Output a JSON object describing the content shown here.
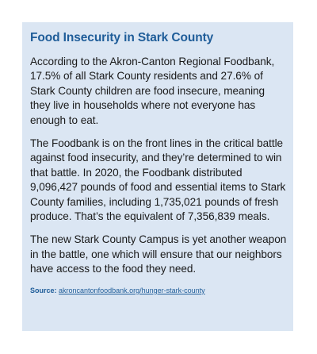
{
  "sidebar": {
    "title": "Food Insecurity in Stark County",
    "paragraphs": [
      "According to the Akron-Canton Regional Foodbank, 17.5% of all Stark County residents and 27.6% of Stark County children are food insecure, meaning they live in households where not everyone has enough to eat.",
      "The Foodbank is on the front lines in the critical battle against food insecurity, and they’re determined to win that battle. In 2020, the Foodbank distributed 9,096,427 pounds of food and essential items to Stark County families, including 1,735,021 pounds of fresh produce. That’s the equivalent of 7,356,839 meals.",
      "The new Stark County Campus is yet another weapon in the battle, one which will ensure that our neighbors have access to the food they need."
    ],
    "source_label": "Source:",
    "source_link": "akroncantonfoodbank.org/hunger-stark-county"
  },
  "colors": {
    "box_background": "#dbe6f3",
    "title_color": "#1f5d99",
    "body_text": "#1a1a1a"
  }
}
